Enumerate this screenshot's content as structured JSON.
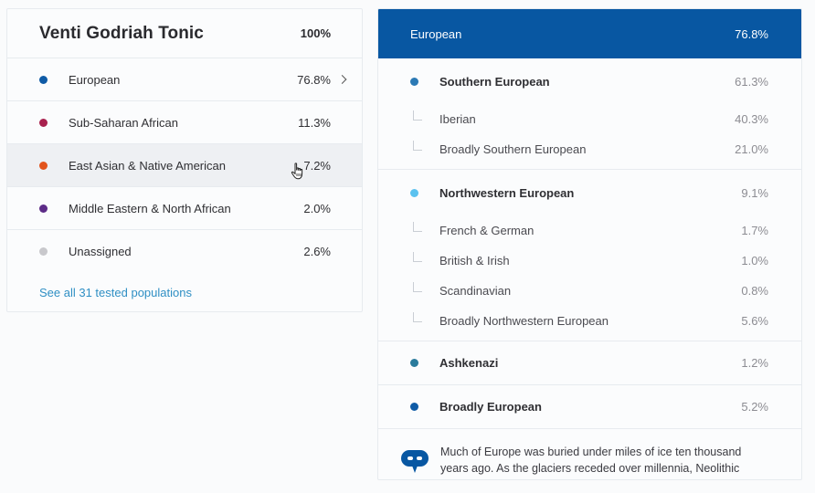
{
  "summary": {
    "title": "Venti Godriah Tonic",
    "total": "100%",
    "rows": [
      {
        "label": "European",
        "pct": "76.8%",
        "color": "#0f5ba6"
      },
      {
        "label": "Sub-Saharan African",
        "pct": "11.3%",
        "color": "#a8214e"
      },
      {
        "label": "East Asian & Native American",
        "pct": "7.2%",
        "color": "#e2541c"
      },
      {
        "label": "Middle Eastern & North African",
        "pct": "2.0%",
        "color": "#5c2b87"
      },
      {
        "label": "Unassigned",
        "pct": "2.6%",
        "color": "#c8c8cc"
      }
    ],
    "see_all": "See all 31 tested populations"
  },
  "detail": {
    "header_label": "European",
    "header_pct": "76.8%",
    "header_color": "#0857a2",
    "groups": [
      {
        "label": "Southern European",
        "pct": "61.3%",
        "color": "#2b79b4",
        "subs": [
          {
            "label": "Iberian",
            "pct": "40.3%"
          },
          {
            "label": "Broadly Southern European",
            "pct": "21.0%"
          }
        ]
      },
      {
        "label": "Northwestern European",
        "pct": "9.1%",
        "color": "#5bc2ef",
        "subs": [
          {
            "label": "French & German",
            "pct": "1.7%"
          },
          {
            "label": "British & Irish",
            "pct": "1.0%"
          },
          {
            "label": "Scandinavian",
            "pct": "0.8%"
          },
          {
            "label": "Broadly Northwestern European",
            "pct": "5.6%"
          }
        ]
      },
      {
        "label": "Ashkenazi",
        "pct": "1.2%",
        "color": "#2a7b9c",
        "subs": []
      },
      {
        "label": "Broadly European",
        "pct": "5.2%",
        "color": "#0f5ba6",
        "subs": []
      }
    ],
    "blurb": "Much of Europe was buried under miles of ice ten thousand years ago. As the glaciers receded over millennia, Neolithic farmers from the Near East joined Paleolithic hunter-gatherers to settle Europe."
  },
  "icons": {
    "chevron": "chevron-right-icon",
    "cursor": "hand-pointer-icon",
    "blurb": "chat-bubble-icon"
  }
}
